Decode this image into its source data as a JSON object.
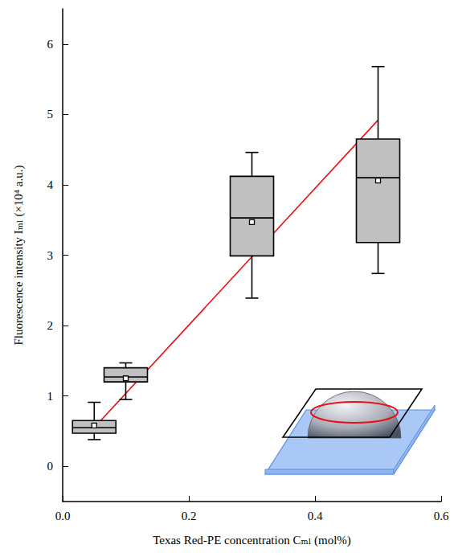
{
  "chart_data": {
    "type": "boxplot",
    "x_label": "Texas Red-PE concentration Cₘₗ (mol%)",
    "y_label": "Fluorescence intensity Iₘₗ (×10⁴ a.u.)",
    "x": [
      0.05,
      0.1,
      0.3,
      0.5
    ],
    "boxes": {
      "min": [
        0.38,
        0.95,
        2.39,
        2.74
      ],
      "q1": [
        0.47,
        1.2,
        2.99,
        3.18
      ],
      "median": [
        0.55,
        1.27,
        3.53,
        4.1
      ],
      "q3": [
        0.65,
        1.4,
        4.12,
        4.65
      ],
      "max": [
        0.91,
        1.47,
        4.46,
        5.68
      ],
      "mean": [
        0.58,
        1.25,
        3.47,
        4.06
      ]
    },
    "color": "#c0c0c0",
    "fit": {
      "type": "line",
      "x": [
        0.05,
        0.5
      ],
      "values": [
        0.55,
        4.92
      ],
      "color": "#e8101a"
    },
    "xlim": [
      0,
      0.6
    ],
    "xticks": [
      {
        "value": 0,
        "label": "0.0"
      },
      0.2,
      0.4,
      0.6
    ],
    "ylim": [
      -0.5,
      6.5
    ],
    "yticks": [
      0,
      1,
      2,
      3,
      4,
      5,
      6
    ],
    "grid": false
  }
}
